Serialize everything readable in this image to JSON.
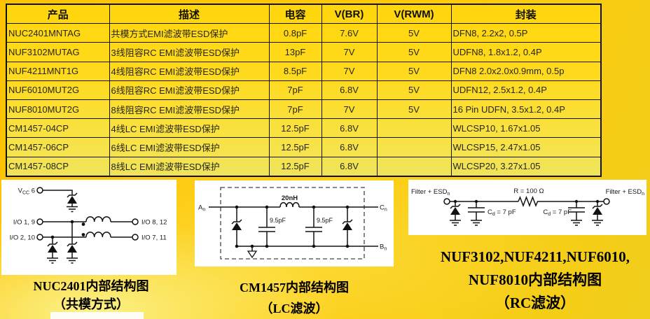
{
  "table": {
    "headers": [
      "产品",
      "描述",
      "电容",
      "V(BR)",
      "V(RWM)",
      "封装"
    ],
    "rows": [
      [
        "NUC2401MNTAG",
        "共模方式EMI滤波带ESD保护",
        "0.8pF",
        "7.6V",
        "5V",
        "DFN8, 2.2x2, 0.5P"
      ],
      [
        "NUF3102MUTAG",
        "3线阻容RC  EMI滤波带ESD保护",
        "13pF",
        "7V",
        "5V",
        "UDFN8, 1.8x1.2, 0.4P"
      ],
      [
        "NUF4211MNT1G",
        "4线阻容RC EMI滤波带ESD保护",
        "8.5pF",
        "7V",
        "5V",
        "DFN8 2.0x2.0x0.9mm, 0.5p"
      ],
      [
        "NUF6010MUT2G",
        "6线阻容RC EMI滤波带ESD保护",
        "7pF",
        "6.8V",
        "5V",
        "UDFN12, 2.5x1.2, 0.4P"
      ],
      [
        "NUF8010MUT2G",
        "8线阻容RC EMI滤波带ESD保护",
        "7pF",
        "7V",
        "5V",
        "16 Pin UDFN, 3.5x1.2, 0.4P"
      ],
      [
        "CM1457-04CP",
        "4线LC EMI滤波带ESD保护",
        "12.5pF",
        "6.8V",
        "",
        "WLCSP10, 1.67x1.05"
      ],
      [
        "CM1457-06CP",
        "6线LC EMI滤波带ESD保护",
        "12.5pF",
        "6.8V",
        "",
        "WLCSP15, 2.47x1.05"
      ],
      [
        "CM1457-08CP",
        "8线LC EMI滤波带ESD保护",
        "12.5pF",
        "6.8V",
        "",
        "WLCSP20, 3.27x1.05"
      ]
    ]
  },
  "diagram1": {
    "caption_line1": "NUC2401内部结构图",
    "caption_line2": "（共模方式）",
    "labels": {
      "vcc_main": "V",
      "vcc_sub": "CC",
      "vcc_pin": " 6",
      "io_left_top": "I/O 1, 9",
      "io_left_bottom": "I/O 2, 10",
      "io_right_top": "I/O 8, 12",
      "io_right_bottom": "I/O 7, 11"
    }
  },
  "diagram2": {
    "caption_line1": "CM1457内部结构图",
    "caption_line2": "（LC滤波）",
    "labels": {
      "port_a": "A",
      "port_a_sub": "n",
      "port_c": "C",
      "port_c_sub": "n",
      "port_b": "B",
      "port_b_sub": "n",
      "inductor": "20nH",
      "cap1": "9.5pF",
      "cap2": "9.5pF"
    }
  },
  "diagram3": {
    "caption_line1": "NUF3102,NUF4211,NUF6010,",
    "caption_line2": "NUF8010内部结构图",
    "caption_line3": "（RC滤波）",
    "labels": {
      "left_port": "Filter + ESD",
      "left_port_sub": "n",
      "right_port": "Filter + ESD",
      "right_port_sub": "n",
      "resistor": "R = 100 Ω",
      "cap_left_main": "C",
      "cap_left_sub": "d",
      "cap_left_val": " = 7 pF",
      "cap_right_main": "C",
      "cap_right_sub": "d",
      "cap_right_val": " = 7 pF"
    }
  },
  "colors": {
    "background_gold": "#ffc905",
    "table_yellow_top": "#ffd60c",
    "table_yellow_bottom": "#efe35c",
    "border_black": "#151504",
    "panel_white": "#ffffff"
  }
}
